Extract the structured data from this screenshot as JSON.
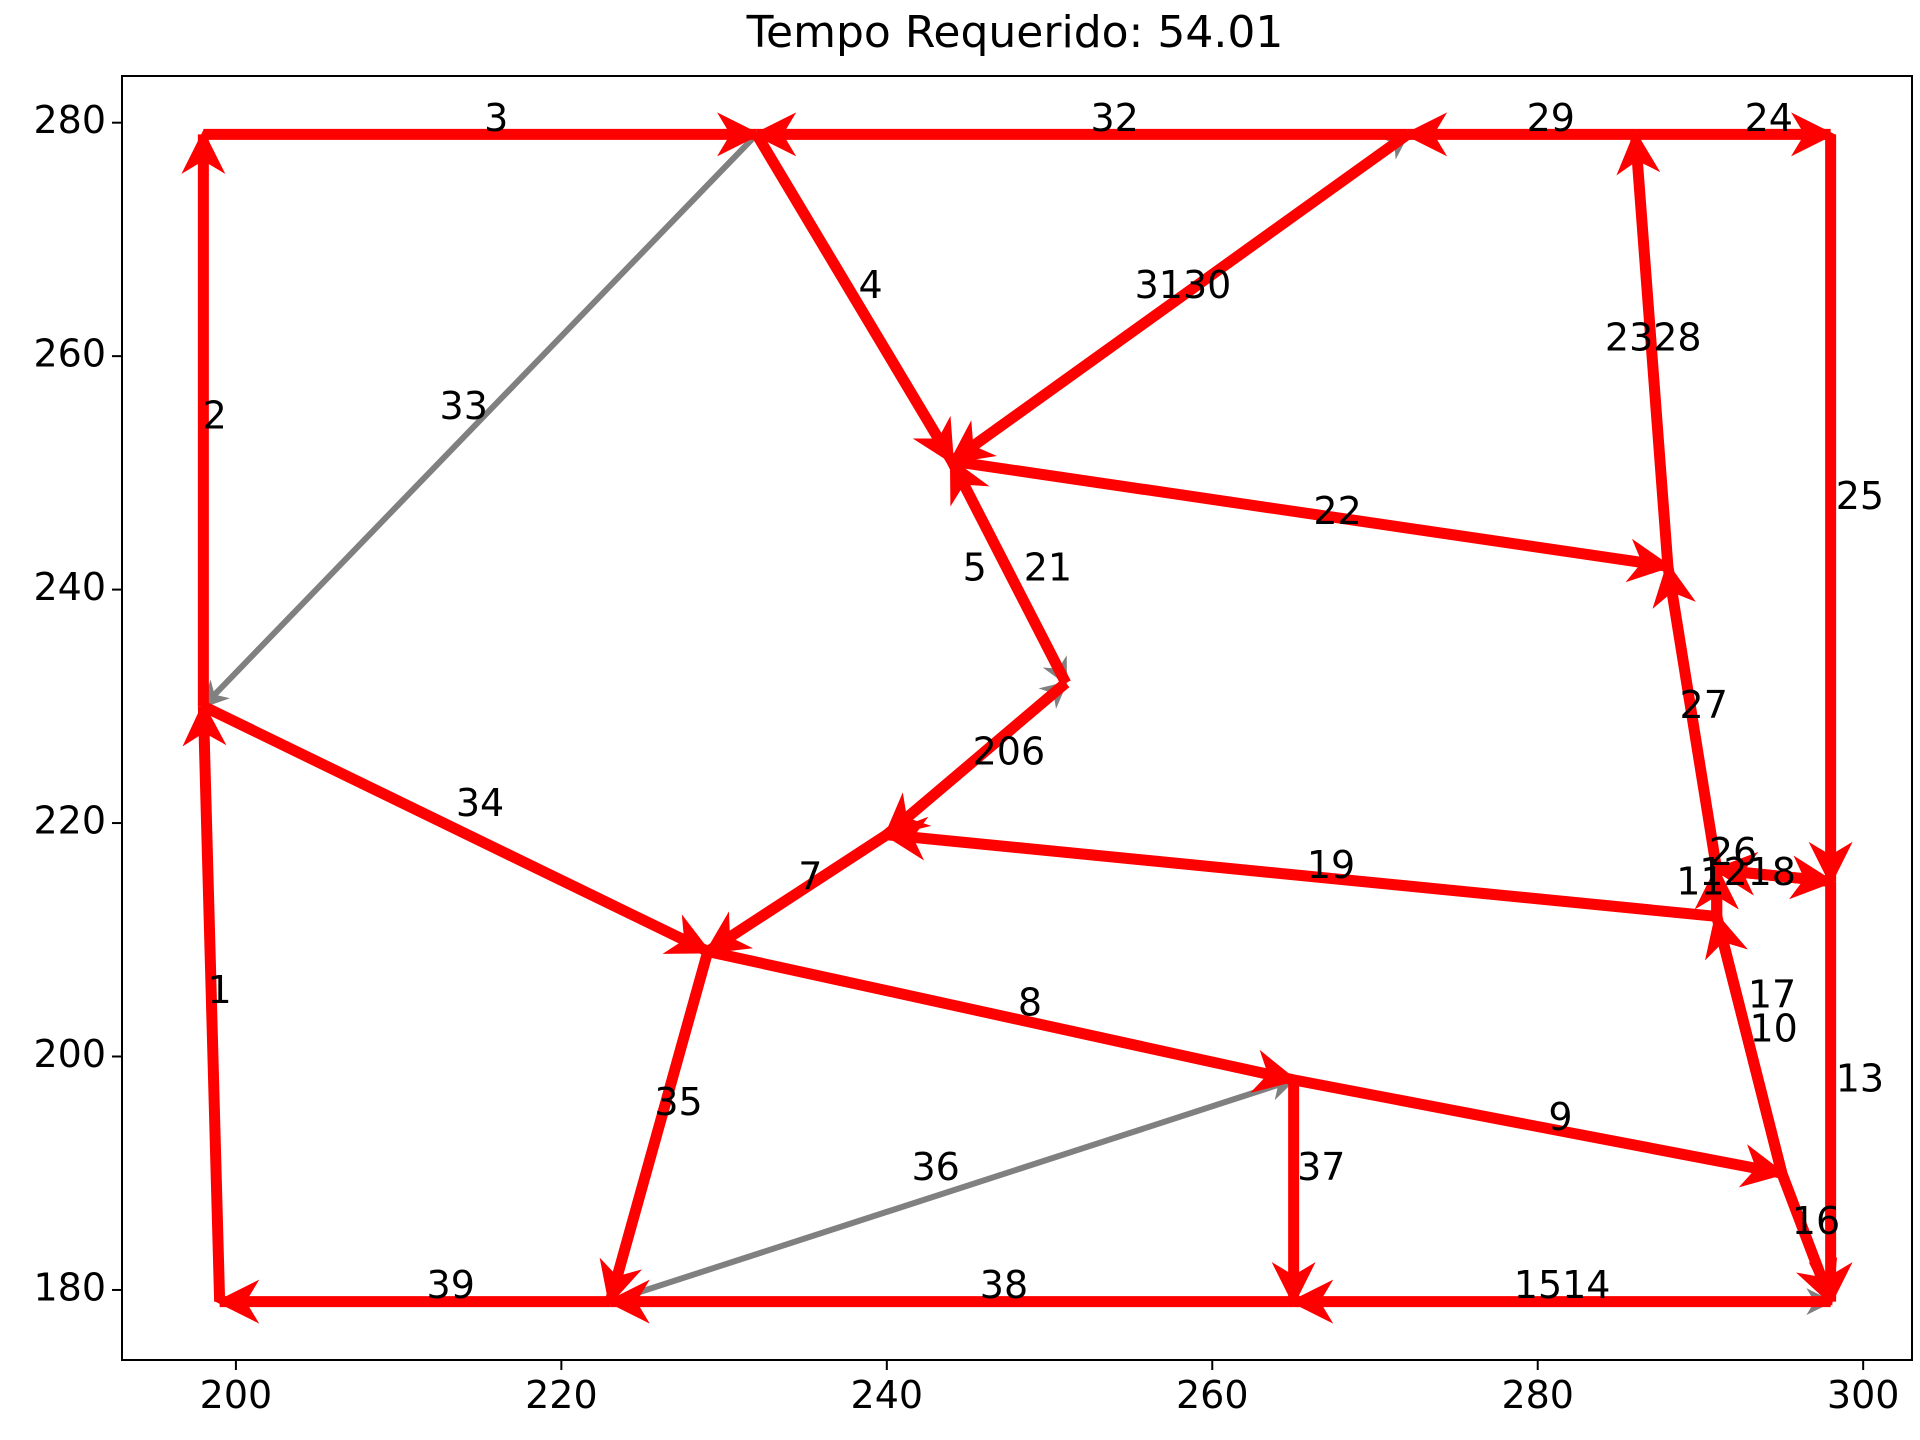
{
  "chart_data": {
    "type": "line",
    "title": "Tempo Requerido: 54.01",
    "xlabel": "",
    "ylabel": "",
    "xlim": [
      193,
      303
    ],
    "ylim": [
      174,
      284
    ],
    "xticks": [
      200,
      220,
      240,
      260,
      280,
      300
    ],
    "yticks": [
      180,
      200,
      220,
      240,
      260,
      280
    ],
    "grid": false,
    "legend": "none",
    "colors": {
      "primary": "#ff0000",
      "secondary": "#808080"
    },
    "edges": [
      {
        "label": "1",
        "from": [
          199,
          179
        ],
        "to": [
          198,
          230
        ],
        "color": "red"
      },
      {
        "label": "2",
        "from": [
          198,
          230
        ],
        "to": [
          198,
          279
        ],
        "color": "red"
      },
      {
        "label": "3",
        "from": [
          198,
          279
        ],
        "to": [
          232,
          279
        ],
        "color": "red"
      },
      {
        "label": "4",
        "from": [
          232,
          279
        ],
        "to": [
          244,
          251
        ],
        "color": "red"
      },
      {
        "label": "5",
        "from": [
          251,
          232
        ],
        "to": [
          244,
          251
        ],
        "color": "red"
      },
      {
        "label": "6",
        "from": [
          251,
          232
        ],
        "to": [
          240,
          219
        ],
        "color": "red"
      },
      {
        "label": "7",
        "from": [
          240,
          219
        ],
        "to": [
          229,
          209
        ],
        "color": "red"
      },
      {
        "label": "8",
        "from": [
          229,
          209
        ],
        "to": [
          265,
          198
        ],
        "color": "red"
      },
      {
        "label": "9",
        "from": [
          265,
          198
        ],
        "to": [
          295,
          190
        ],
        "color": "red"
      },
      {
        "label": "10",
        "from": [
          295,
          190
        ],
        "to": [
          291,
          212
        ],
        "color": "red"
      },
      {
        "label": "11",
        "from": [
          291,
          212
        ],
        "to": [
          291,
          216
        ],
        "color": "red"
      },
      {
        "label": "12",
        "from": [
          291,
          216
        ],
        "to": [
          298,
          215
        ],
        "color": "red"
      },
      {
        "label": "13",
        "from": [
          298,
          215
        ],
        "to": [
          298,
          179
        ],
        "color": "red"
      },
      {
        "label": "14",
        "from": [
          298,
          179
        ],
        "to": [
          265,
          179
        ],
        "color": "red"
      },
      {
        "label": "15",
        "from": [
          265,
          179
        ],
        "to": [
          298,
          179
        ],
        "color": "gray"
      },
      {
        "label": "16",
        "from": [
          295,
          190
        ],
        "to": [
          298,
          179
        ],
        "color": "red"
      },
      {
        "label": "17",
        "from": [
          295,
          190
        ],
        "to": [
          291,
          212
        ],
        "color": "red"
      },
      {
        "label": "18",
        "from": [
          291,
          212
        ],
        "to": [
          291,
          216
        ],
        "color": "red"
      },
      {
        "label": "19",
        "from": [
          291,
          212
        ],
        "to": [
          240,
          219
        ],
        "color": "red"
      },
      {
        "label": "20",
        "from": [
          240,
          219
        ],
        "to": [
          251,
          232
        ],
        "color": "gray"
      },
      {
        "label": "21",
        "from": [
          244,
          251
        ],
        "to": [
          251,
          232
        ],
        "color": "gray"
      },
      {
        "label": "22",
        "from": [
          244,
          251
        ],
        "to": [
          288,
          242
        ],
        "color": "red"
      },
      {
        "label": "23",
        "from": [
          288,
          242
        ],
        "to": [
          286,
          279
        ],
        "color": "gray"
      },
      {
        "label": "24",
        "from": [
          286,
          279
        ],
        "to": [
          298,
          279
        ],
        "color": "red"
      },
      {
        "label": "25",
        "from": [
          298,
          279
        ],
        "to": [
          298,
          215
        ],
        "color": "red"
      },
      {
        "label": "26",
        "from": [
          298,
          215
        ],
        "to": [
          291,
          216
        ],
        "color": "red"
      },
      {
        "label": "27",
        "from": [
          291,
          216
        ],
        "to": [
          288,
          242
        ],
        "color": "red"
      },
      {
        "label": "28",
        "from": [
          288,
          242
        ],
        "to": [
          286,
          279
        ],
        "color": "red"
      },
      {
        "label": "29",
        "from": [
          286,
          279
        ],
        "to": [
          272,
          279
        ],
        "color": "red"
      },
      {
        "label": "30",
        "from": [
          272,
          279
        ],
        "to": [
          244,
          251
        ],
        "color": "red"
      },
      {
        "label": "31",
        "from": [
          244,
          251
        ],
        "to": [
          272,
          279
        ],
        "color": "gray"
      },
      {
        "label": "32",
        "from": [
          272,
          279
        ],
        "to": [
          232,
          279
        ],
        "color": "red"
      },
      {
        "label": "33",
        "from": [
          232,
          279
        ],
        "to": [
          198,
          230
        ],
        "color": "gray"
      },
      {
        "label": "34",
        "from": [
          198,
          230
        ],
        "to": [
          229,
          209
        ],
        "color": "red"
      },
      {
        "label": "35",
        "from": [
          229,
          209
        ],
        "to": [
          223,
          179
        ],
        "color": "red"
      },
      {
        "label": "36",
        "from": [
          223,
          179
        ],
        "to": [
          265,
          198
        ],
        "color": "gray"
      },
      {
        "label": "37",
        "from": [
          265,
          198
        ],
        "to": [
          265,
          179
        ],
        "color": "red"
      },
      {
        "label": "38",
        "from": [
          265,
          179
        ],
        "to": [
          223,
          179
        ],
        "color": "red"
      },
      {
        "label": "39",
        "from": [
          223,
          179
        ],
        "to": [
          199,
          179
        ],
        "color": "red"
      }
    ],
    "labels": [
      {
        "text": "1",
        "x": 199,
        "y": 205.5
      },
      {
        "text": "2",
        "x": 198.7,
        "y": 254.7
      },
      {
        "text": "3",
        "x": 216,
        "y": 280.2
      },
      {
        "text": "4",
        "x": 239,
        "y": 265.9
      },
      {
        "text": "5",
        "x": 245.4,
        "y": 241.7
      },
      {
        "text": "206",
        "x": 247.5,
        "y": 225.9
      },
      {
        "text": "7",
        "x": 235.3,
        "y": 215.2
      },
      {
        "text": "8",
        "x": 248.8,
        "y": 204.4
      },
      {
        "text": "9",
        "x": 281.4,
        "y": 194.6
      },
      {
        "text": "10",
        "x": 294.5,
        "y": 202.2
      },
      {
        "text": "11",
        "x": 290,
        "y": 214.8
      },
      {
        "text": "1218",
        "x": 292.9,
        "y": 215.6
      },
      {
        "text": "13",
        "x": 299.8,
        "y": 197.9
      },
      {
        "text": "1514",
        "x": 281.5,
        "y": 180.2
      },
      {
        "text": "16",
        "x": 297.1,
        "y": 185.7
      },
      {
        "text": "17",
        "x": 294.4,
        "y": 205.1
      },
      {
        "text": "19",
        "x": 267.3,
        "y": 216.2
      },
      {
        "text": "21",
        "x": 249.9,
        "y": 241.7
      },
      {
        "text": "22",
        "x": 267.7,
        "y": 246.5
      },
      {
        "text": "2328",
        "x": 287.1,
        "y": 261.4
      },
      {
        "text": "24",
        "x": 294.2,
        "y": 280.2
      },
      {
        "text": "25",
        "x": 299.8,
        "y": 247.8
      },
      {
        "text": "26",
        "x": 292,
        "y": 217.3
      },
      {
        "text": "27",
        "x": 290.2,
        "y": 229.9
      },
      {
        "text": "29",
        "x": 280.8,
        "y": 280.2
      },
      {
        "text": "3130",
        "x": 258.2,
        "y": 265.9
      },
      {
        "text": "32",
        "x": 254,
        "y": 280.2
      },
      {
        "text": "33",
        "x": 214,
        "y": 255.5
      },
      {
        "text": "34",
        "x": 215,
        "y": 221.5
      },
      {
        "text": "35",
        "x": 227.2,
        "y": 195.9
      },
      {
        "text": "36",
        "x": 243,
        "y": 190.3
      },
      {
        "text": "37",
        "x": 266.7,
        "y": 190.3
      },
      {
        "text": "38",
        "x": 247.2,
        "y": 180.2
      },
      {
        "text": "39",
        "x": 213.2,
        "y": 180.2
      }
    ]
  }
}
